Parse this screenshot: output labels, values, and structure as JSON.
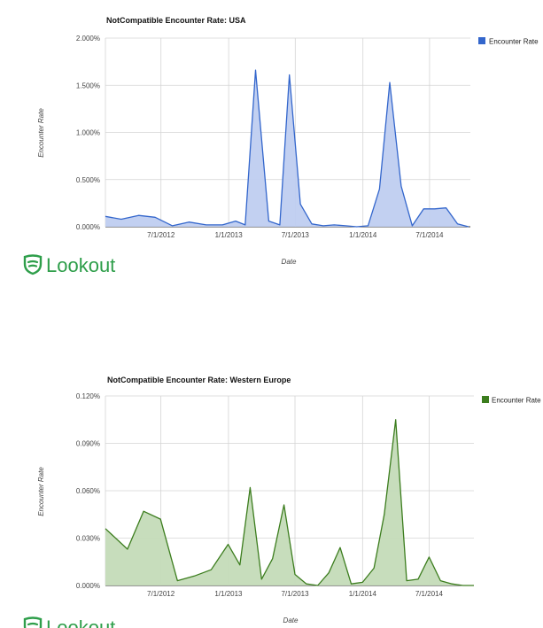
{
  "logo": {
    "text": "Lookout",
    "color": "#2e9e4a"
  },
  "chart_data": [
    {
      "type": "area",
      "title": "NotCompatible Encounter Rate: USA",
      "xlabel": "Date",
      "ylabel": "Encounter Rate",
      "ylim": [
        0,
        2.0
      ],
      "y_ticks": [
        "0.000%",
        "0.500%",
        "1.000%",
        "1.500%",
        "2.000%"
      ],
      "x_ticks": [
        "7/1/2012",
        "1/1/2013",
        "7/1/2013",
        "1/1/2014",
        "7/1/2014"
      ],
      "legend_position": "top-right",
      "color": "#3366cc",
      "fill": "#bfcdf0",
      "series": [
        {
          "name": "Encounter Rate",
          "x": [
            "2012-02-01",
            "2012-03-15",
            "2012-05-01",
            "2012-06-15",
            "2012-08-01",
            "2012-09-15",
            "2012-11-01",
            "2012-12-15",
            "2013-01-20",
            "2013-02-15",
            "2013-03-15",
            "2013-04-20",
            "2013-05-20",
            "2013-06-15",
            "2013-07-15",
            "2013-08-15",
            "2013-09-15",
            "2013-10-15",
            "2013-11-15",
            "2013-12-15",
            "2014-01-15",
            "2014-02-15",
            "2014-03-15",
            "2014-04-15",
            "2014-05-15",
            "2014-06-15",
            "2014-07-15",
            "2014-08-15",
            "2014-09-15",
            "2014-10-15"
          ],
          "values": [
            0.11,
            0.08,
            0.12,
            0.1,
            0.01,
            0.05,
            0.02,
            0.02,
            0.06,
            0.02,
            1.66,
            0.06,
            0.02,
            1.61,
            0.24,
            0.03,
            0.01,
            0.02,
            0.01,
            0.0,
            0.01,
            0.4,
            1.53,
            0.43,
            0.01,
            0.19,
            0.19,
            0.2,
            0.03,
            0.0
          ]
        }
      ]
    },
    {
      "type": "area",
      "title": "NotCompatible Encounter Rate: Western Europe",
      "xlabel": "Date",
      "ylabel": "Encounter Rate",
      "ylim": [
        0,
        0.12
      ],
      "y_ticks": [
        "0.000%",
        "0.030%",
        "0.060%",
        "0.090%",
        "0.120%"
      ],
      "x_ticks": [
        "7/1/2012",
        "1/1/2013",
        "7/1/2013",
        "1/1/2014",
        "7/1/2014"
      ],
      "legend_position": "top-right",
      "color": "#3c7d1e",
      "fill": "#c4dbb8",
      "series": [
        {
          "name": "Encounter Rate",
          "x": [
            "2012-02-01",
            "2012-04-01",
            "2012-05-15",
            "2012-06-30",
            "2012-08-15",
            "2012-09-30",
            "2012-11-15",
            "2012-12-31",
            "2013-02-01",
            "2013-03-01",
            "2013-04-01",
            "2013-05-01",
            "2013-06-01",
            "2013-07-01",
            "2013-08-01",
            "2013-09-01",
            "2013-10-01",
            "2013-11-01",
            "2013-12-01",
            "2014-01-01",
            "2014-02-01",
            "2014-03-01",
            "2014-04-01",
            "2014-05-01",
            "2014-06-01",
            "2014-07-01",
            "2014-08-01",
            "2014-09-01",
            "2014-10-01",
            "2014-10-31"
          ],
          "values": [
            0.036,
            0.023,
            0.047,
            0.042,
            0.003,
            0.006,
            0.01,
            0.026,
            0.013,
            0.062,
            0.004,
            0.017,
            0.051,
            0.007,
            0.001,
            0.0,
            0.008,
            0.024,
            0.001,
            0.002,
            0.011,
            0.045,
            0.105,
            0.003,
            0.004,
            0.018,
            0.003,
            0.001,
            0.0,
            0.0
          ]
        }
      ]
    }
  ]
}
